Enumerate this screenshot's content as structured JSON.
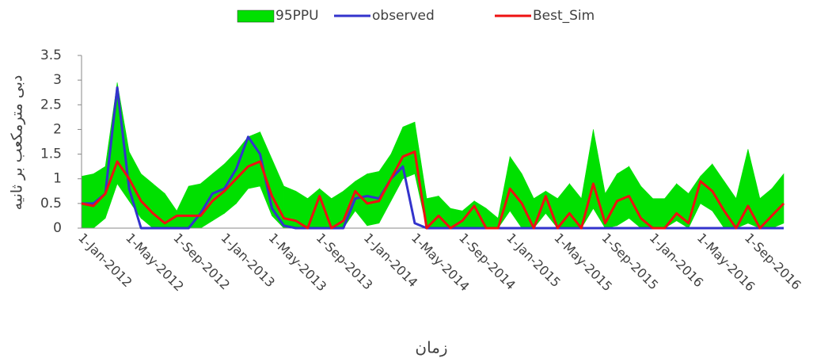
{
  "chart_data": {
    "type": "band-line",
    "x_label": "زمان",
    "y_label": "دبی مترمکعب بر ثانیه",
    "categories": [
      "1-Jan-2012",
      null,
      null,
      null,
      "1-May-2012",
      null,
      null,
      null,
      "1-Sep-2012",
      null,
      null,
      null,
      "1-Jan-2013",
      null,
      null,
      null,
      "1-May-2013",
      null,
      null,
      null,
      "1-Sep-2013",
      null,
      null,
      null,
      "1-Jan-2014",
      null,
      null,
      null,
      "1-May-2014",
      null,
      null,
      null,
      "1-Sep-2014",
      null,
      null,
      null,
      "1-Jan-2015",
      null,
      null,
      null,
      "1-May-2015",
      null,
      null,
      null,
      "1-Sep-2015",
      null,
      null,
      null,
      "1-Jan-2016",
      null,
      null,
      null,
      "1-May-2016",
      null,
      null,
      null,
      "1-Sep-2016",
      null,
      null,
      null
    ],
    "ylim": [
      0,
      3.5
    ],
    "yticks": [
      0,
      0.5,
      1,
      1.5,
      2,
      2.5,
      3,
      3.5
    ],
    "series": [
      {
        "name": "95PPU",
        "color": "#00e000",
        "upper": [
          1.05,
          1.1,
          1.25,
          2.95,
          1.55,
          1.1,
          0.9,
          0.7,
          0.35,
          0.85,
          0.9,
          1.1,
          1.3,
          1.55,
          1.85,
          1.95,
          1.4,
          0.85,
          0.75,
          0.6,
          0.8,
          0.6,
          0.75,
          0.95,
          1.1,
          1.15,
          1.5,
          2.05,
          2.15,
          0.6,
          0.65,
          0.4,
          0.35,
          0.55,
          0.4,
          0.2,
          1.45,
          1.1,
          0.6,
          0.75,
          0.6,
          0.9,
          0.6,
          2.0,
          0.7,
          1.1,
          1.25,
          0.85,
          0.6,
          0.6,
          0.9,
          0.7,
          1.05,
          1.3,
          0.95,
          0.6,
          1.6,
          0.6,
          0.8,
          1.1
        ],
        "lower": [
          0,
          0,
          0.2,
          0.9,
          0.55,
          0.2,
          0,
          0,
          0,
          0,
          0,
          0.15,
          0.3,
          0.5,
          0.8,
          0.85,
          0.25,
          0,
          0,
          0,
          0,
          0,
          0,
          0.35,
          0.05,
          0.1,
          0.55,
          1.0,
          1.1,
          0,
          0,
          0,
          0,
          0,
          0,
          0,
          0.35,
          0,
          0,
          0.3,
          0,
          0,
          0,
          0.4,
          0,
          0.05,
          0.2,
          0,
          0,
          0,
          0.15,
          0,
          0.5,
          0.35,
          0,
          0,
          0.1,
          0,
          0,
          0.1
        ]
      },
      {
        "name": "observed",
        "color": "#3333cc",
        "values": [
          0.5,
          0.5,
          0.7,
          2.85,
          0.8,
          0,
          0,
          0,
          0,
          0,
          0.3,
          0.7,
          0.8,
          1.2,
          1.85,
          1.5,
          0.4,
          0.05,
          0,
          0,
          0,
          0,
          0,
          0.6,
          0.65,
          0.6,
          1.0,
          1.25,
          0.1,
          0,
          0,
          0,
          0,
          0,
          0,
          0,
          0,
          0,
          0,
          0,
          0,
          0,
          0,
          0,
          0,
          0,
          0,
          0,
          0,
          0,
          0,
          0,
          0,
          0,
          0,
          0,
          0,
          0,
          0,
          0
        ]
      },
      {
        "name": "Best_Sim",
        "color": "#ee1111",
        "values": [
          0.5,
          0.45,
          0.7,
          1.35,
          1.0,
          0.55,
          0.3,
          0.1,
          0.25,
          0.25,
          0.25,
          0.55,
          0.75,
          1.0,
          1.25,
          1.35,
          0.65,
          0.2,
          0.15,
          0,
          0.65,
          0,
          0.15,
          0.75,
          0.5,
          0.55,
          1.0,
          1.45,
          1.55,
          0,
          0.25,
          0,
          0.15,
          0.45,
          0,
          0,
          0.8,
          0.5,
          0,
          0.65,
          0,
          0.3,
          0,
          0.9,
          0.1,
          0.55,
          0.65,
          0.2,
          0,
          0,
          0.3,
          0.1,
          0.95,
          0.75,
          0.35,
          0,
          0.45,
          0,
          0.25,
          0.5
        ]
      }
    ]
  }
}
